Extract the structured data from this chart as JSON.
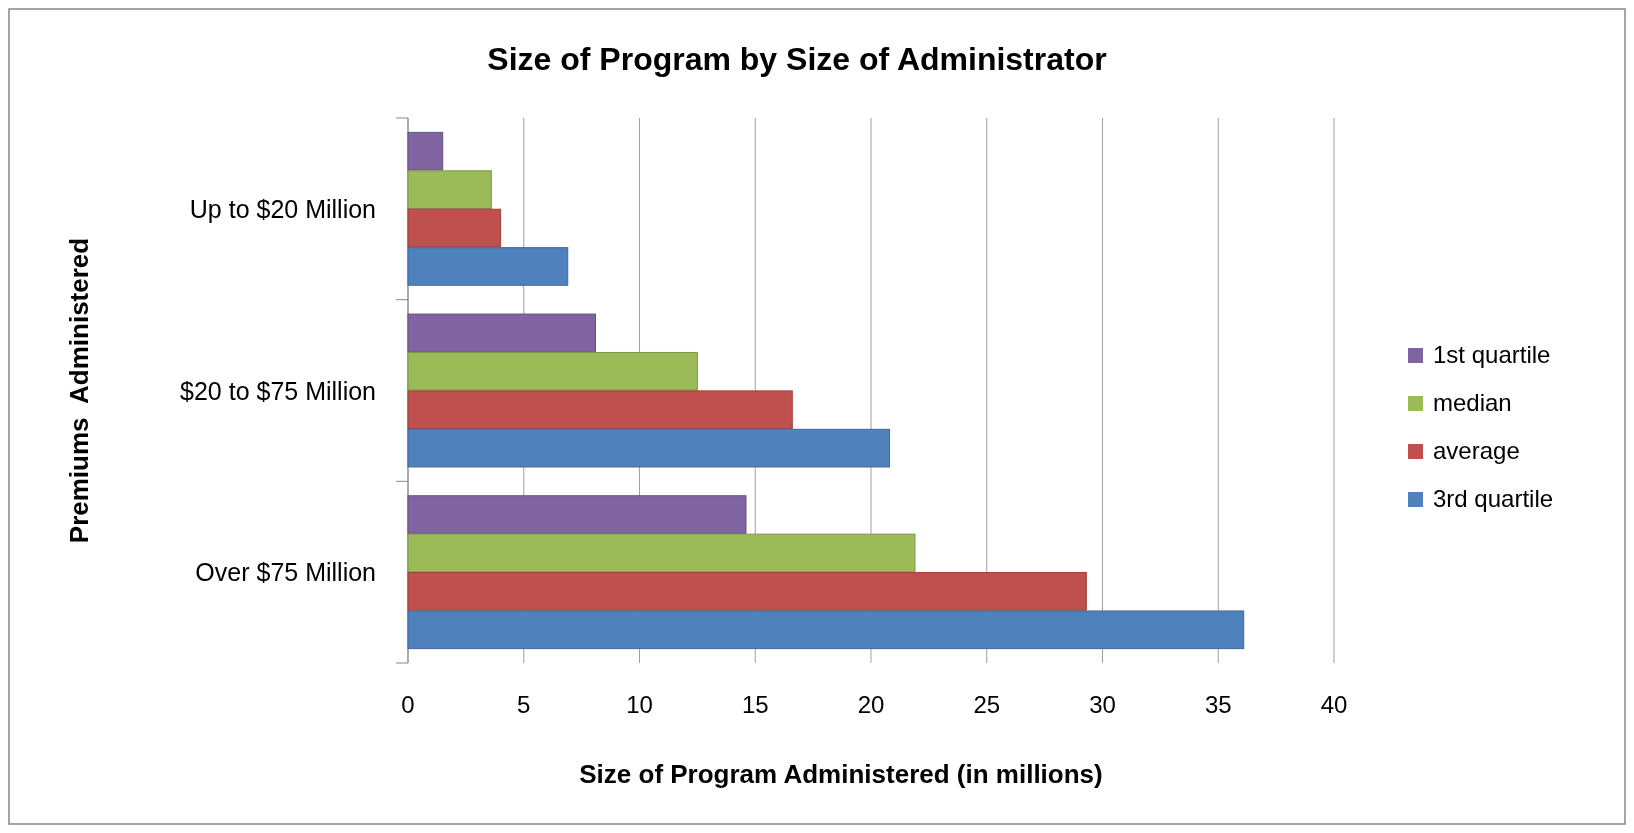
{
  "chart_data": {
    "type": "bar",
    "orientation": "horizontal",
    "title": "Size of Program by Size of Administrator",
    "xlabel": "Size of Program Administered (in millions)",
    "ylabel": "Premiums  Administered",
    "categories": [
      "Up to $20 Million",
      "$20 to $75 Million",
      "Over $75 Million"
    ],
    "series": [
      {
        "name": "1st quartile",
        "color": "#8064a2",
        "values": [
          1.5,
          8.1,
          14.6
        ]
      },
      {
        "name": "median",
        "color": "#9bbb59",
        "values": [
          3.6,
          12.5,
          21.9
        ]
      },
      {
        "name": "average",
        "color": "#c0504d",
        "values": [
          4.0,
          16.6,
          29.3
        ]
      },
      {
        "name": "3rd quartile",
        "color": "#4f81bd",
        "values": [
          6.9,
          20.8,
          36.1
        ]
      }
    ],
    "xlim": [
      0,
      40
    ],
    "xticks": [
      0,
      5,
      10,
      15,
      20,
      25,
      30,
      35,
      40
    ],
    "grid": "x",
    "legend": "right"
  }
}
